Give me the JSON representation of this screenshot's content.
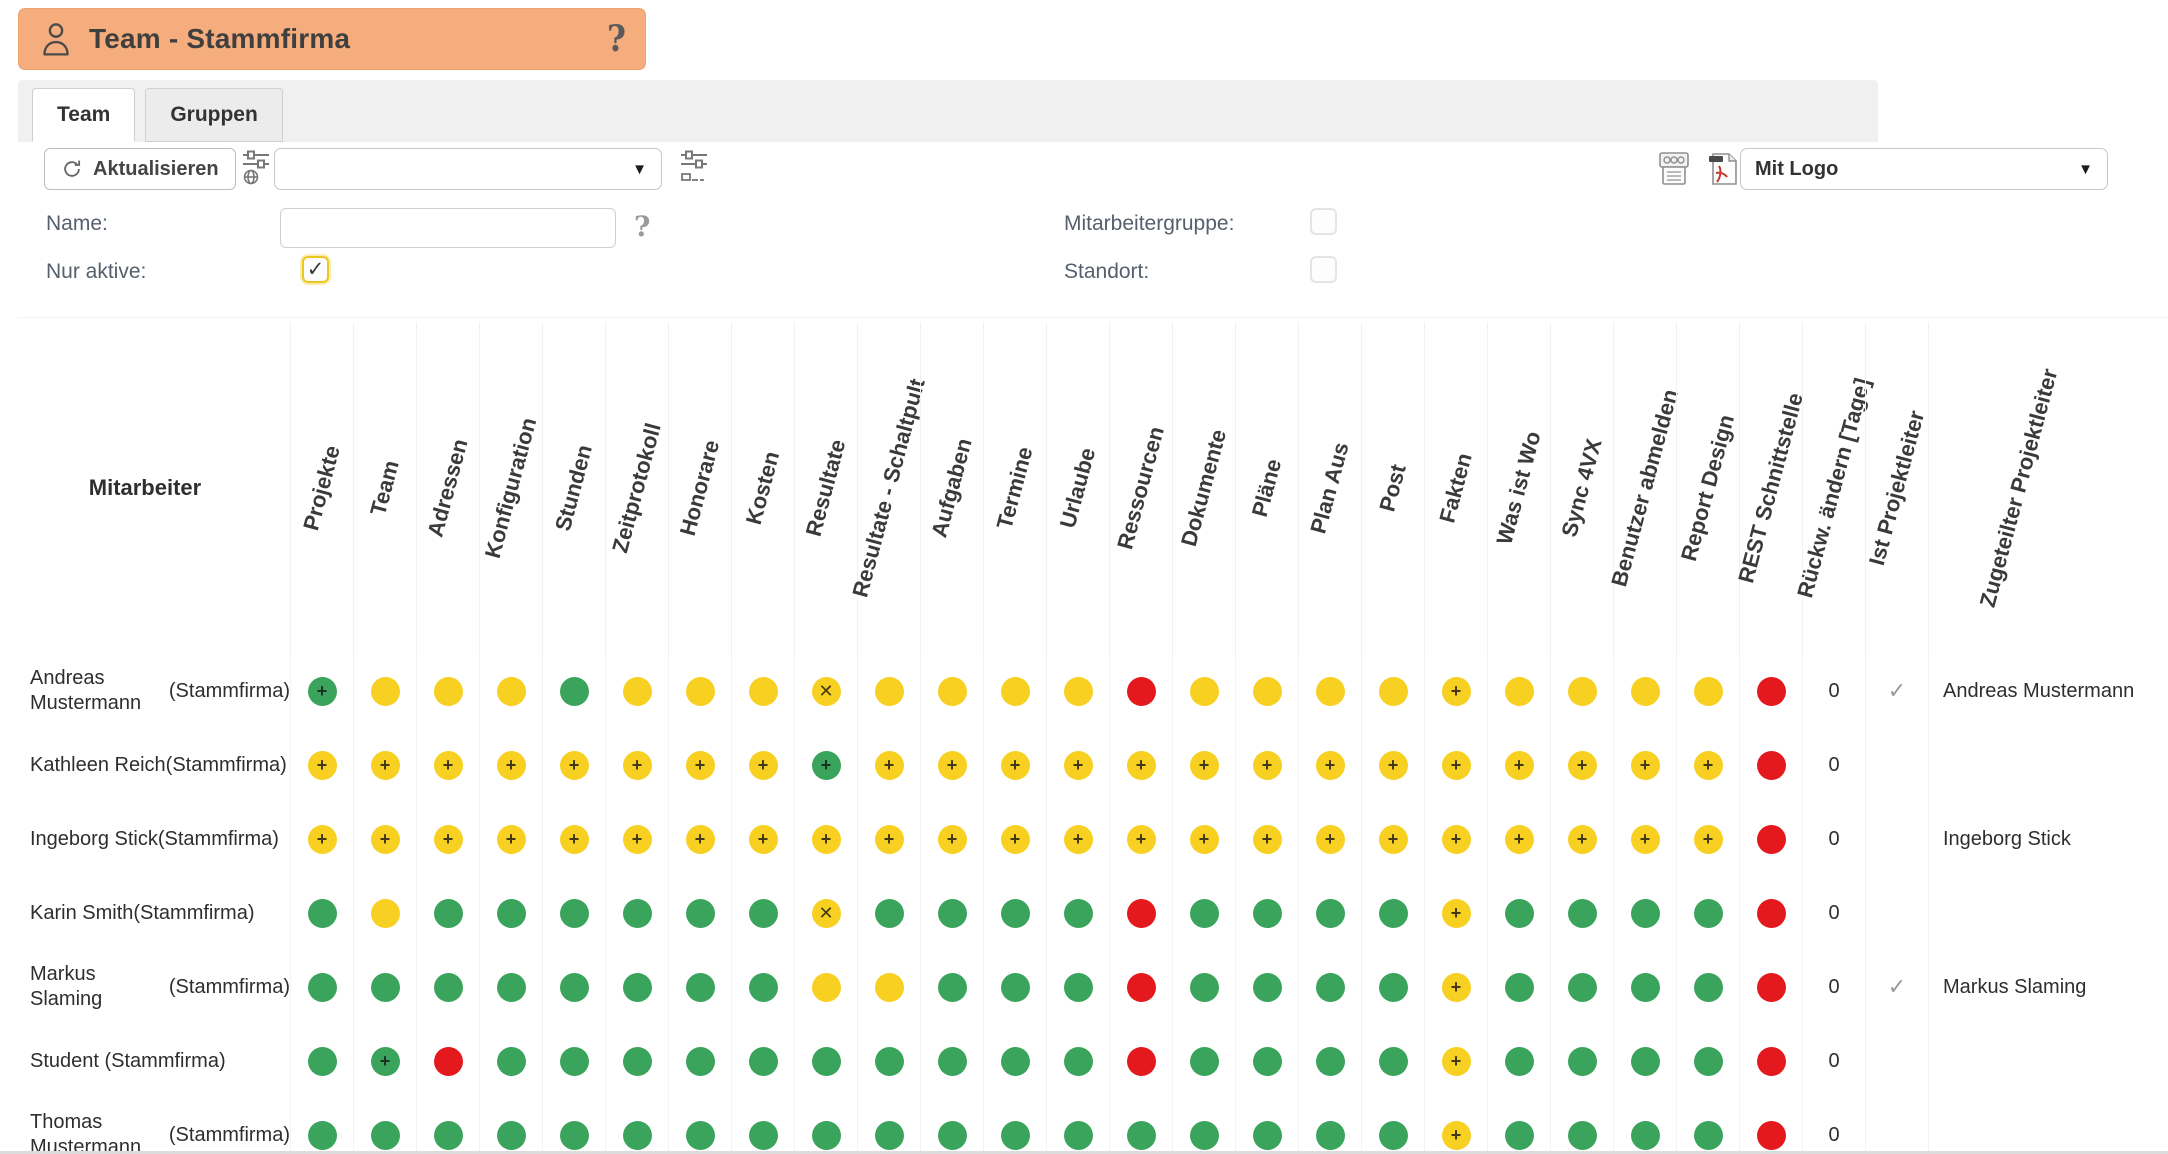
{
  "banner": {
    "title": "Team - Stammfirma"
  },
  "tabs": [
    {
      "label": "Team",
      "active": true
    },
    {
      "label": "Gruppen",
      "active": false
    }
  ],
  "toolbar": {
    "refresh_label": "Aktualisieren",
    "filter_select_value": "",
    "logo_select_value": "Mit Logo"
  },
  "filters": {
    "name_label": "Name:",
    "name_value": "",
    "nur_aktive_label": "Nur aktive:",
    "nur_aktive_checked": true,
    "mitarbeitergruppe_label": "Mitarbeitergruppe:",
    "mitarbeitergruppe_checked": false,
    "standort_label": "Standort:",
    "standort_checked": false
  },
  "icons": {
    "banner": "person-icon",
    "banner_help": "question-mark-icon",
    "refresh": "refresh-icon",
    "filter_settings": "sliders-globe-icon",
    "column_settings": "sliders-panel-icon",
    "export_csv": "print-csv-icon",
    "export_pdf": "pdf-export-icon",
    "name_help": "question-mark-icon",
    "dropdown": "caret-down-icon"
  },
  "colors": {
    "accent_orange": "#f5ad7d",
    "dot_green": "#3aa45c",
    "dot_yellow": "#f7d022",
    "dot_red": "#e3191e"
  },
  "table": {
    "mitarbeiter_header": "Mitarbeiter",
    "dot_columns": [
      "Projekte",
      "Team",
      "Adressen",
      "Konfiguration",
      "Stunden",
      "Zeitprotokoll",
      "Honorare",
      "Kosten",
      "Resultate",
      "Resultate - Schaltpult",
      "Aufgaben",
      "Termine",
      "Urlaube",
      "Ressourcen",
      "Dokumente",
      "Pläne",
      "Plan Aus",
      "Post",
      "Fakten",
      "Was ist Wo",
      "Sync 4VX",
      "Benutzer abmelden",
      "Report Design",
      "REST Schnittstelle"
    ],
    "extra_columns": [
      "Rückw. ändern [Tage]",
      "Ist Projektleiter",
      "Zugeteilter Projektleiter"
    ],
    "symbol_legend": {
      "g": "green",
      "g+": "green-plus",
      "y": "yellow",
      "y+": "yellow-plus",
      "yx": "yellow-x",
      "r": "red"
    },
    "check_glyph": "✓",
    "rows": [
      {
        "name_lines": [
          "Andreas Mustermann",
          "(Stammfirma)"
        ],
        "cells": [
          "g+",
          "y",
          "y",
          "y",
          "g",
          "y",
          "y",
          "y",
          "yx",
          "y",
          "y",
          "y",
          "y",
          "r",
          "y",
          "y",
          "y",
          "y",
          "y+",
          "y",
          "y",
          "y",
          "y",
          "r"
        ],
        "rueckw": "0",
        "ist_projektleiter": true,
        "zugeteilter": "Andreas Mustermann"
      },
      {
        "name_lines": [
          "Kathleen Reich",
          "(Stammfirma)"
        ],
        "cells": [
          "y+",
          "y+",
          "y+",
          "y+",
          "y+",
          "y+",
          "y+",
          "y+",
          "g+",
          "y+",
          "y+",
          "y+",
          "y+",
          "y+",
          "y+",
          "y+",
          "y+",
          "y+",
          "y+",
          "y+",
          "y+",
          "y+",
          "y+",
          "r"
        ],
        "rueckw": "0",
        "ist_projektleiter": false,
        "zugeteilter": ""
      },
      {
        "name_lines": [
          "Ingeborg Stick",
          "(Stammfirma)"
        ],
        "cells": [
          "y+",
          "y+",
          "y+",
          "y+",
          "y+",
          "y+",
          "y+",
          "y+",
          "y+",
          "y+",
          "y+",
          "y+",
          "y+",
          "y+",
          "y+",
          "y+",
          "y+",
          "y+",
          "y+",
          "y+",
          "y+",
          "y+",
          "y+",
          "r"
        ],
        "rueckw": "0",
        "ist_projektleiter": false,
        "zugeteilter": "Ingeborg Stick"
      },
      {
        "name_lines": [
          "Karin Smith",
          "(Stammfirma)"
        ],
        "cells": [
          "g",
          "y",
          "g",
          "g",
          "g",
          "g",
          "g",
          "g",
          "yx",
          "g",
          "g",
          "g",
          "g",
          "r",
          "g",
          "g",
          "g",
          "g",
          "y+",
          "g",
          "g",
          "g",
          "g",
          "r"
        ],
        "rueckw": "0",
        "ist_projektleiter": false,
        "zugeteilter": ""
      },
      {
        "name_lines": [
          "Markus Slaming",
          "(Stammfirma)"
        ],
        "cells": [
          "g",
          "g",
          "g",
          "g",
          "g",
          "g",
          "g",
          "g",
          "y",
          "y",
          "g",
          "g",
          "g",
          "r",
          "g",
          "g",
          "g",
          "g",
          "y+",
          "g",
          "g",
          "g",
          "g",
          "r"
        ],
        "rueckw": "0",
        "ist_projektleiter": true,
        "zugeteilter": "Markus Slaming"
      },
      {
        "name_lines": [
          "Student (Stammfirma)"
        ],
        "cells": [
          "g",
          "g+",
          "r",
          "g",
          "g",
          "g",
          "g",
          "g",
          "g",
          "g",
          "g",
          "g",
          "g",
          "r",
          "g",
          "g",
          "g",
          "g",
          "y+",
          "g",
          "g",
          "g",
          "g",
          "r"
        ],
        "rueckw": "0",
        "ist_projektleiter": false,
        "zugeteilter": ""
      },
      {
        "name_lines": [
          "Thomas Mustermann",
          "(Stammfirma)"
        ],
        "cells": [
          "g",
          "g",
          "g",
          "g",
          "g",
          "g",
          "g",
          "g",
          "g",
          "g",
          "g",
          "g",
          "g",
          "g",
          "g",
          "g",
          "g",
          "g",
          "y+",
          "g",
          "g",
          "g",
          "g",
          "r"
        ],
        "rueckw": "0",
        "ist_projektleiter": false,
        "zugeteilter": ""
      }
    ]
  }
}
